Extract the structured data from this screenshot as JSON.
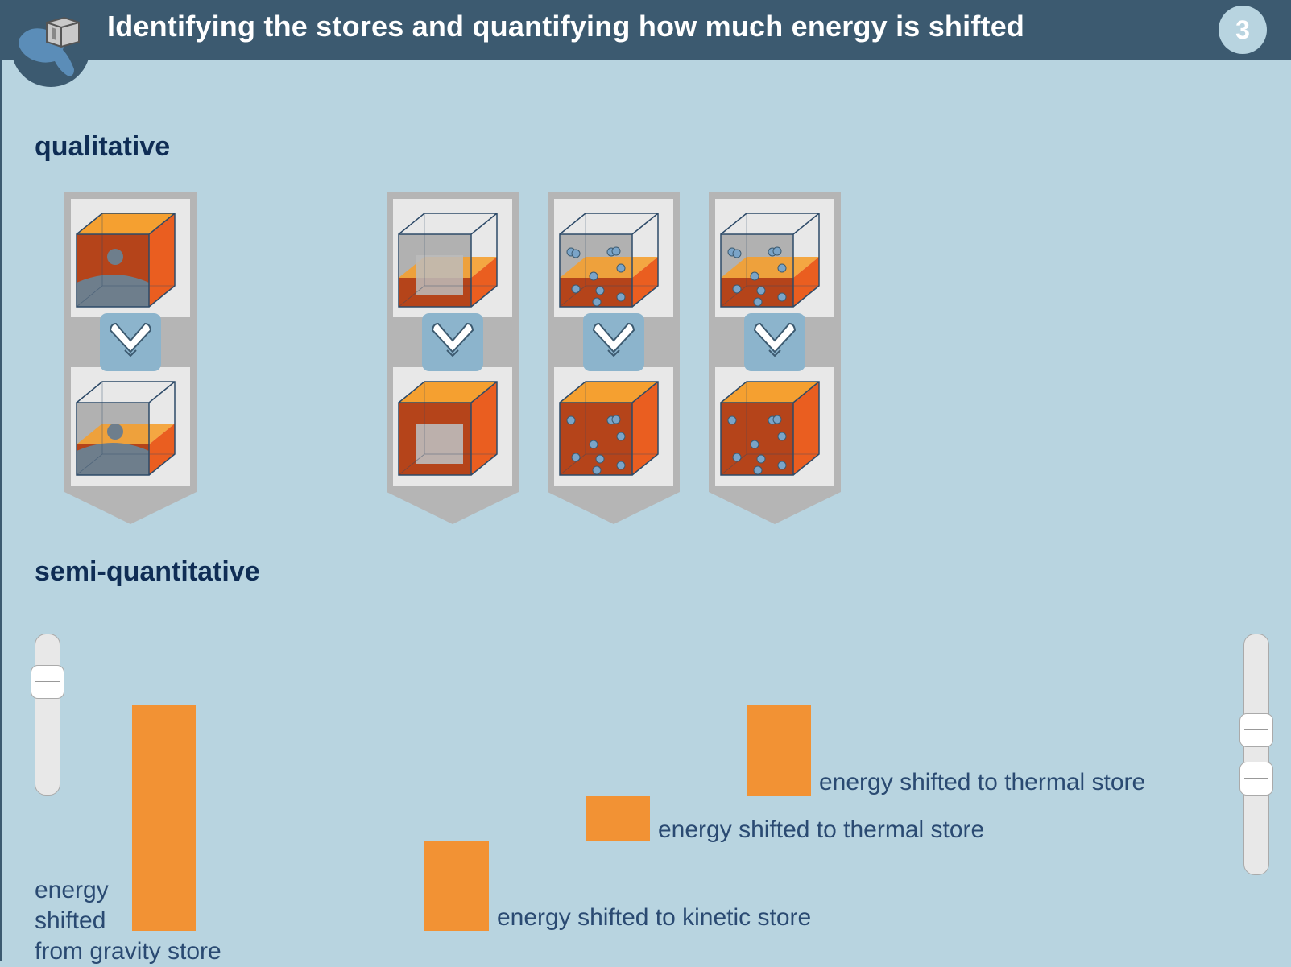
{
  "header": {
    "title": "Identifying the stores and quantifying how much energy is shifted",
    "page_number": "3",
    "logo_icon": "hand-holding-cube-icon"
  },
  "qualitative": {
    "heading": "qualitative",
    "cards": [
      {
        "name": "gravity-store-card",
        "top_scene": "cube-with-ball-high",
        "bottom_scene": "cube-with-ball-low",
        "arrow_icon": "chevron-down-icon"
      },
      {
        "name": "kinetic-store-card",
        "top_scene": "cube-with-block-half",
        "bottom_scene": "cube-with-block-full",
        "arrow_icon": "chevron-down-icon"
      },
      {
        "name": "thermal-store-card-1",
        "top_scene": "cube-with-particles-half",
        "bottom_scene": "cube-with-particles-full",
        "arrow_icon": "chevron-down-icon"
      },
      {
        "name": "thermal-store-card-2",
        "top_scene": "cube-with-particles-half",
        "bottom_scene": "cube-with-particles-full",
        "arrow_icon": "chevron-down-icon"
      }
    ]
  },
  "semi_quantitative": {
    "heading": "semi-quantitative",
    "gravity_label": [
      "energy",
      "shifted",
      "from gravity store"
    ],
    "kinetic_label": "energy shifted to kinetic store",
    "thermal_label_1": "energy shifted to thermal store",
    "thermal_label_2": "energy shifted to thermal store",
    "left_slider_value": 0.8,
    "right_slider_values": [
      0.6,
      0.4
    ],
    "colors": {
      "bar": "#f29234",
      "background": "#b8d4e0",
      "header": "#3c5a70"
    }
  }
}
